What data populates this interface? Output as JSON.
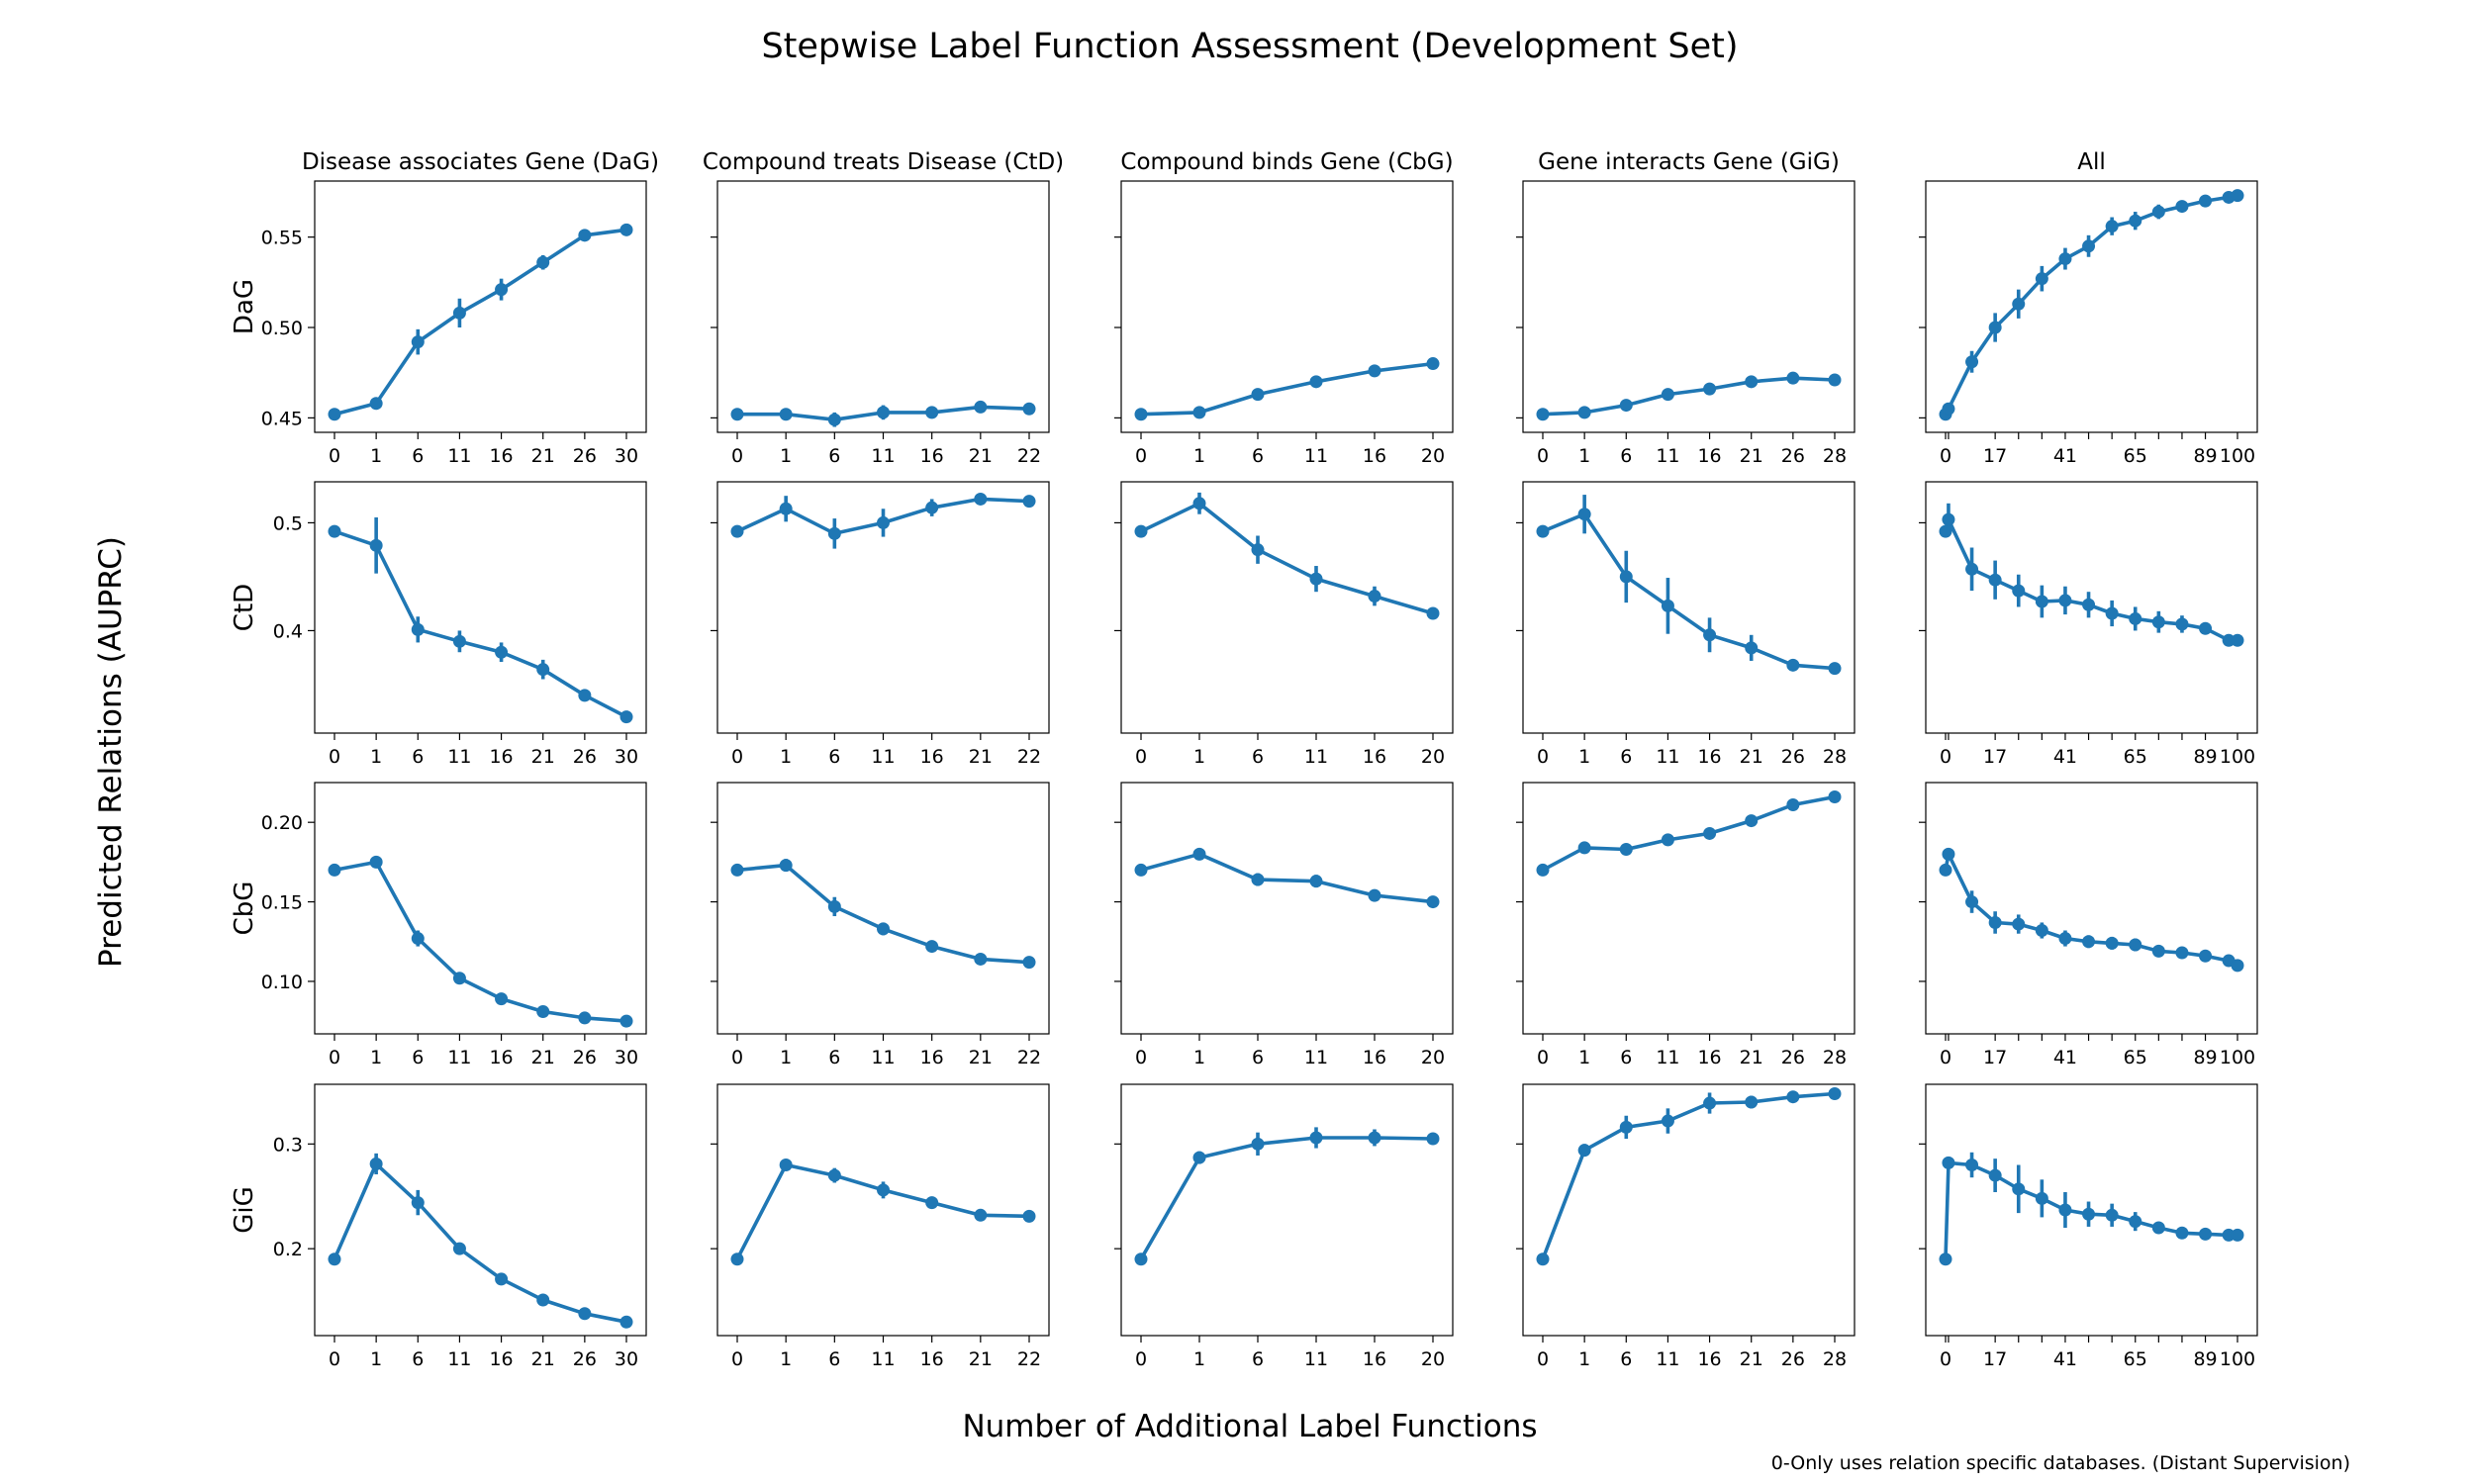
{
  "title": "Stepwise Label Function Assessment (Development Set)",
  "xlabel": "Number of Additional Label Functions",
  "ylabel": "Predicted Relations (AUPRC)",
  "footnote": "0-Only uses relation specific databases. (Distant Supervision)",
  "series_color": "#1f77b4",
  "columns": [
    "Disease associates Gene (DaG)",
    "Compound treats Disease (CtD)",
    "Compound binds Gene (CbG)",
    "Gene interacts Gene (GiG)",
    "All"
  ],
  "rows": [
    "DaG",
    "CtD",
    "CbG",
    "GiG"
  ],
  "chart_data": {
    "type": "line",
    "layout": "grid 4 rows x 5 columns, y-axis shared across each row",
    "x_tick_labels": [
      [
        "0",
        "1",
        "6",
        "11",
        "16",
        "21",
        "26",
        "30"
      ],
      [
        "0",
        "1",
        "6",
        "11",
        "16",
        "21",
        "22"
      ],
      [
        "0",
        "1",
        "6",
        "11",
        "16",
        "20"
      ],
      [
        "0",
        "1",
        "6",
        "11",
        "16",
        "21",
        "26",
        "28"
      ],
      [
        "0",
        "",
        "17",
        "",
        "",
        "41",
        "",
        "",
        "65",
        "",
        "",
        "89",
        "100"
      ]
    ],
    "all_column_x": [
      0,
      1,
      9,
      17,
      25,
      33,
      41,
      49,
      57,
      65,
      73,
      81,
      89,
      97,
      100
    ],
    "y_axes": [
      {
        "ylim": [
          0.442,
          0.581
        ],
        "ticks": [
          0.45,
          0.5,
          0.55
        ],
        "tick_labels": [
          "0.45",
          "0.50",
          "0.55"
        ]
      },
      {
        "ylim": [
          0.305,
          0.538
        ],
        "ticks": [
          0.4,
          0.5
        ],
        "tick_labels": [
          "0.4",
          "0.5"
        ]
      },
      {
        "ylim": [
          0.067,
          0.225
        ],
        "ticks": [
          0.1,
          0.15,
          0.2
        ],
        "tick_labels": [
          "0.10",
          "0.15",
          "0.20"
        ]
      },
      {
        "ylim": [
          0.117,
          0.357
        ],
        "ticks": [
          0.2,
          0.3
        ],
        "tick_labels": [
          "0.2",
          "0.3"
        ]
      }
    ],
    "panels": [
      [
        {
          "values": [
            0.452,
            0.458,
            0.492,
            0.508,
            0.521,
            0.536,
            0.551,
            0.554
          ],
          "errors": [
            0.001,
            0.002,
            0.007,
            0.008,
            0.006,
            0.004,
            0.001,
            0.001
          ]
        },
        {
          "values": [
            0.452,
            0.452,
            0.449,
            0.453,
            0.453,
            0.456,
            0.455
          ],
          "errors": [
            0.001,
            0.001,
            0.004,
            0.004,
            0.002,
            0.001,
            0.001
          ]
        },
        {
          "values": [
            0.452,
            0.453,
            0.463,
            0.47,
            0.476,
            0.48
          ],
          "errors": [
            0.001,
            0.001,
            0.001,
            0.001,
            0.001,
            0.001
          ]
        },
        {
          "values": [
            0.452,
            0.453,
            0.457,
            0.463,
            0.466,
            0.47,
            0.472,
            0.471
          ],
          "errors": [
            0.001,
            0.001,
            0.001,
            0.001,
            0.001,
            0.001,
            0.001,
            0.001
          ]
        },
        {
          "values": [
            0.452,
            0.455,
            0.481,
            0.5,
            0.513,
            0.527,
            0.538,
            0.545,
            0.556,
            0.559,
            0.564,
            0.567,
            0.57,
            0.572,
            0.573
          ],
          "errors": [
            0.001,
            0.002,
            0.006,
            0.008,
            0.008,
            0.007,
            0.006,
            0.006,
            0.005,
            0.005,
            0.004,
            0.003,
            0.002,
            0.002,
            0.001
          ]
        }
      ],
      [
        {
          "values": [
            0.492,
            0.479,
            0.401,
            0.39,
            0.38,
            0.364,
            0.34,
            0.32
          ],
          "errors": [
            0.001,
            0.026,
            0.012,
            0.01,
            0.009,
            0.009,
            0.004,
            0.001
          ]
        },
        {
          "values": [
            0.492,
            0.513,
            0.49,
            0.5,
            0.514,
            0.522,
            0.52
          ],
          "errors": [
            0.002,
            0.012,
            0.014,
            0.013,
            0.008,
            0.003,
            0.002
          ]
        },
        {
          "values": [
            0.492,
            0.518,
            0.475,
            0.448,
            0.432,
            0.416
          ],
          "errors": [
            0.002,
            0.01,
            0.013,
            0.012,
            0.009,
            0.003
          ]
        },
        {
          "values": [
            0.492,
            0.508,
            0.45,
            0.423,
            0.396,
            0.384,
            0.368,
            0.365
          ],
          "errors": [
            0.002,
            0.018,
            0.024,
            0.026,
            0.016,
            0.012,
            0.003,
            0.002
          ]
        },
        {
          "values": [
            0.492,
            0.503,
            0.457,
            0.447,
            0.437,
            0.427,
            0.428,
            0.424,
            0.416,
            0.411,
            0.408,
            0.406,
            0.402,
            0.391,
            0.391
          ],
          "errors": [
            0.002,
            0.015,
            0.02,
            0.018,
            0.015,
            0.015,
            0.013,
            0.012,
            0.012,
            0.011,
            0.01,
            0.008,
            0.005,
            0.003,
            0.002
          ]
        }
      ],
      [
        {
          "values": [
            0.17,
            0.175,
            0.127,
            0.102,
            0.089,
            0.081,
            0.077,
            0.075
          ],
          "errors": [
            0.001,
            0.002,
            0.005,
            0.003,
            0.002,
            0.001,
            0.001,
            0.001
          ]
        },
        {
          "values": [
            0.17,
            0.173,
            0.147,
            0.133,
            0.122,
            0.114,
            0.112
          ],
          "errors": [
            0.001,
            0.004,
            0.006,
            0.004,
            0.002,
            0.001,
            0.001
          ]
        },
        {
          "values": [
            0.17,
            0.18,
            0.164,
            0.163,
            0.154,
            0.15
          ],
          "errors": [
            0.001,
            0.001,
            0.004,
            0.004,
            0.002,
            0.001
          ]
        },
        {
          "values": [
            0.17,
            0.184,
            0.183,
            0.189,
            0.193,
            0.201,
            0.211,
            0.216
          ],
          "errors": [
            0.001,
            0.002,
            0.003,
            0.003,
            0.002,
            0.001,
            0.001,
            0.001
          ]
        },
        {
          "values": [
            0.17,
            0.18,
            0.15,
            0.137,
            0.136,
            0.132,
            0.127,
            0.125,
            0.124,
            0.123,
            0.119,
            0.118,
            0.116,
            0.113,
            0.11
          ],
          "errors": [
            0.001,
            0.002,
            0.007,
            0.007,
            0.006,
            0.005,
            0.005,
            0.004,
            0.004,
            0.004,
            0.003,
            0.003,
            0.002,
            0.001,
            0.001
          ]
        }
      ],
      [
        {
          "values": [
            0.19,
            0.281,
            0.244,
            0.2,
            0.171,
            0.151,
            0.138,
            0.13
          ],
          "errors": [
            0.001,
            0.01,
            0.012,
            0.005,
            0.004,
            0.002,
            0.001,
            0.001
          ]
        },
        {
          "values": [
            0.19,
            0.28,
            0.27,
            0.256,
            0.244,
            0.232,
            0.231
          ],
          "errors": [
            0.001,
            0.001,
            0.007,
            0.008,
            0.005,
            0.002,
            0.002
          ]
        },
        {
          "values": [
            0.19,
            0.287,
            0.3,
            0.306,
            0.306,
            0.305
          ],
          "errors": [
            0.001,
            0.006,
            0.011,
            0.01,
            0.008,
            0.001
          ]
        },
        {
          "values": [
            0.19,
            0.294,
            0.316,
            0.322,
            0.339,
            0.34,
            0.345,
            0.348
          ],
          "errors": [
            0.001,
            0.006,
            0.011,
            0.012,
            0.01,
            0.006,
            0.002,
            0.001
          ]
        },
        {
          "values": [
            0.19,
            0.282,
            0.28,
            0.27,
            0.257,
            0.248,
            0.237,
            0.233,
            0.232,
            0.226,
            0.22,
            0.215,
            0.214,
            0.213,
            0.213
          ],
          "errors": [
            0.001,
            0.005,
            0.012,
            0.016,
            0.023,
            0.018,
            0.017,
            0.012,
            0.011,
            0.009,
            0.005,
            0.003,
            0.002,
            0.001,
            0.001
          ]
        }
      ]
    ]
  }
}
